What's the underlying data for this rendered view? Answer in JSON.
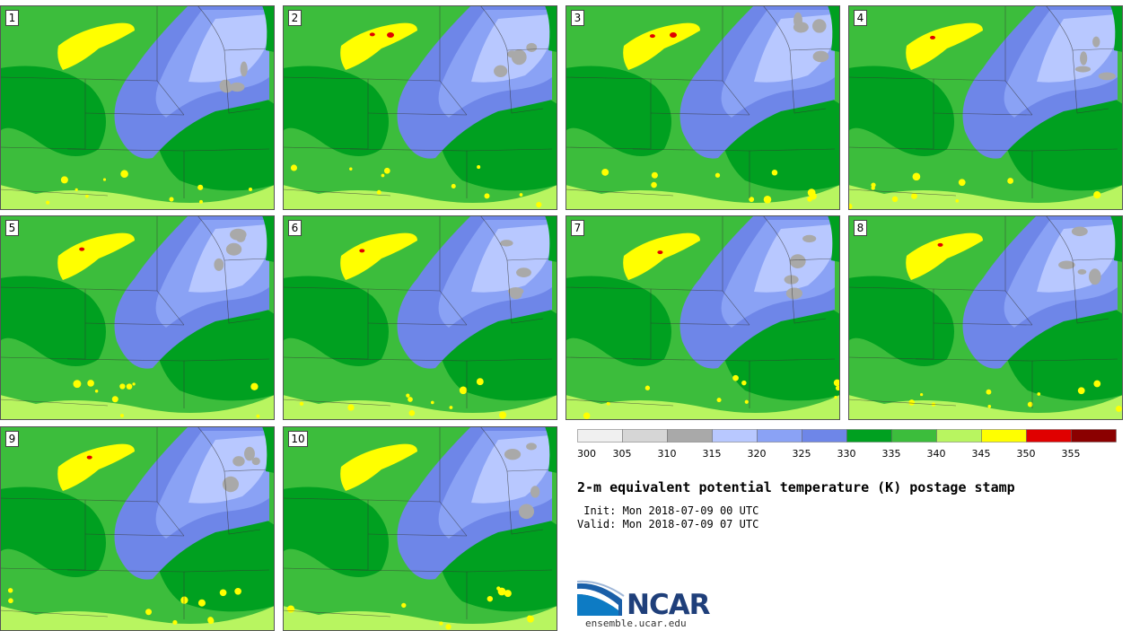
{
  "panels": [
    {
      "label": "1"
    },
    {
      "label": "2"
    },
    {
      "label": "3"
    },
    {
      "label": "4"
    },
    {
      "label": "5"
    },
    {
      "label": "6"
    },
    {
      "label": "7"
    },
    {
      "label": "8"
    },
    {
      "label": "9"
    },
    {
      "label": "10"
    }
  ],
  "colorbar": {
    "ticks": [
      "300",
      "305",
      "310",
      "315",
      "320",
      "325",
      "330",
      "335",
      "340",
      "345",
      "350",
      "355"
    ],
    "colors": [
      "#f0f0f0",
      "#d6d6d6",
      "#a9a9a9",
      "#b8c8ff",
      "#8aa2f5",
      "#6e86e8",
      "#00a020",
      "#3cbd3c",
      "#b8f560",
      "#ffff00",
      "#e00000",
      "#8b0000"
    ]
  },
  "title": "2-m equivalent potential temperature (K) postage stamp",
  "init": " Init: Mon 2018-07-09 00 UTC",
  "valid": "Valid: Mon 2018-07-09 07 UTC",
  "logo": {
    "text": "NCAR",
    "url": "ensemble.ucar.edu"
  }
}
